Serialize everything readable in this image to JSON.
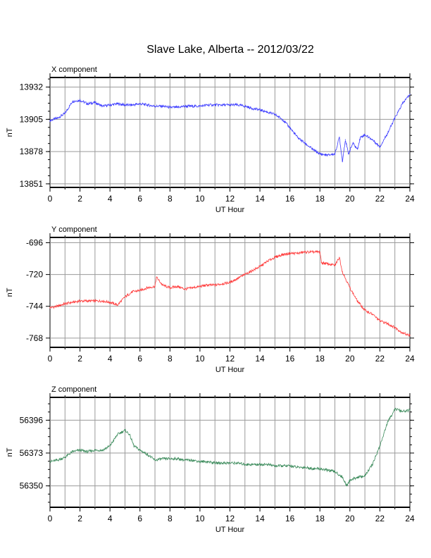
{
  "chart_data": {
    "title": "Slave Lake, Alberta -- 2012/03/22",
    "panels": [
      {
        "type": "line",
        "title": "X component",
        "xlabel": "UT Hour",
        "ylabel": "nT",
        "xlim": [
          0,
          24
        ],
        "ylim": [
          13848,
          13940
        ],
        "xticks": [
          "0",
          "2",
          "4",
          "6",
          "8",
          "10",
          "12",
          "14",
          "16",
          "18",
          "20",
          "22",
          "24"
        ],
        "yticks": [
          "13851",
          "13878",
          "13905",
          "13932"
        ],
        "grid": true,
        "color": "#3b3bff",
        "x": [
          0,
          0.5,
          1,
          1.5,
          2,
          2.5,
          3,
          3.5,
          4,
          4.5,
          5,
          5.5,
          6,
          6.5,
          7,
          7.5,
          8,
          8.5,
          9,
          9.5,
          10,
          10.5,
          11,
          11.5,
          12,
          12.5,
          13,
          13.5,
          14,
          14.5,
          15,
          15.5,
          16,
          16.5,
          17,
          17.5,
          18,
          18.5,
          19,
          19.3,
          19.5,
          19.7,
          19.9,
          20.2,
          20.5,
          20.7,
          21,
          21.5,
          22,
          22.5,
          23,
          23.5,
          24
        ],
        "values": [
          13904,
          13906,
          13910,
          13920,
          13921,
          13918,
          13919,
          13916,
          13917,
          13918,
          13917,
          13917,
          13918,
          13917,
          13916,
          13916,
          13915,
          13915,
          13916,
          13916,
          13916,
          13917,
          13917,
          13917,
          13917,
          13917,
          13916,
          13914,
          13913,
          13911,
          13909,
          13905,
          13898,
          13890,
          13885,
          13880,
          13876,
          13875,
          13876,
          13890,
          13870,
          13888,
          13876,
          13885,
          13880,
          13890,
          13892,
          13888,
          13882,
          13893,
          13906,
          13918,
          13926
        ]
      },
      {
        "type": "line",
        "title": "Y component",
        "xlabel": "UT Hour",
        "ylabel": "nT",
        "xlim": [
          0,
          24
        ],
        "ylim": [
          -775,
          -692
        ],
        "xticks": [
          "0",
          "2",
          "4",
          "6",
          "8",
          "10",
          "12",
          "14",
          "16",
          "18",
          "20",
          "22",
          "24"
        ],
        "yticks": [
          "-696",
          "-720",
          "-744",
          "-768"
        ],
        "grid": true,
        "color": "#ff3b3b",
        "x": [
          0,
          0.5,
          1,
          1.5,
          2,
          2.5,
          3,
          3.5,
          4,
          4.5,
          5,
          5.5,
          6,
          6.5,
          7,
          7.1,
          7.5,
          8,
          8.5,
          9,
          9.5,
          10,
          10.5,
          11,
          11.5,
          12,
          12.5,
          13,
          13.5,
          14,
          14.5,
          15,
          15.5,
          16,
          16.5,
          17,
          17.5,
          18,
          18.1,
          18.5,
          19,
          19.3,
          19.5,
          20,
          20.5,
          21,
          21.5,
          22,
          22.5,
          23,
          23.5,
          24
        ],
        "values": [
          -745,
          -744,
          -742,
          -741,
          -740,
          -740,
          -740,
          -740,
          -741,
          -743,
          -737,
          -733,
          -732,
          -730,
          -729,
          -722,
          -728,
          -730,
          -729,
          -731,
          -730,
          -729,
          -728,
          -728,
          -727,
          -726,
          -723,
          -720,
          -717,
          -714,
          -710,
          -707,
          -705,
          -704,
          -704,
          -703,
          -703,
          -703,
          -711,
          -712,
          -713,
          -707,
          -718,
          -730,
          -740,
          -747,
          -750,
          -755,
          -757,
          -760,
          -764,
          -766
        ]
      },
      {
        "type": "line",
        "title": "Z component",
        "xlabel": "UT Hour",
        "ylabel": "nT",
        "xlim": [
          0,
          24
        ],
        "ylim": [
          56335,
          56412
        ],
        "xticks": [
          "0",
          "2",
          "4",
          "6",
          "8",
          "10",
          "12",
          "14",
          "16",
          "18",
          "20",
          "22",
          "24"
        ],
        "yticks": [
          "56350",
          "56373",
          "56396"
        ],
        "grid": true,
        "color": "#3a8a5a",
        "x": [
          0,
          0.5,
          1,
          1.5,
          2,
          2.5,
          3,
          3.5,
          4,
          4.5,
          5,
          5.3,
          5.6,
          6,
          6.5,
          7,
          7.5,
          8,
          8.5,
          9,
          9.5,
          10,
          10.5,
          11,
          11.5,
          12,
          12.5,
          13,
          13.5,
          14,
          14.5,
          15,
          15.5,
          16,
          16.5,
          17,
          17.5,
          18,
          18.5,
          19,
          19.5,
          19.8,
          20,
          20.5,
          21,
          21.5,
          22,
          22.5,
          23,
          23.5,
          24
        ],
        "values": [
          56367,
          56368,
          56370,
          56374,
          56375,
          56374,
          56375,
          56375,
          56378,
          56386,
          56389,
          56386,
          56378,
          56375,
          56372,
          56368,
          56369,
          56369,
          56369,
          56368,
          56368,
          56367,
          56367,
          56366,
          56366,
          56366,
          56366,
          56365,
          56365,
          56365,
          56365,
          56364,
          56364,
          56364,
          56363,
          56363,
          56362,
          56362,
          56361,
          56360,
          56356,
          56350,
          56354,
          56356,
          56357,
          56365,
          56378,
          56394,
          56404,
          56402,
          56403
        ]
      }
    ]
  }
}
